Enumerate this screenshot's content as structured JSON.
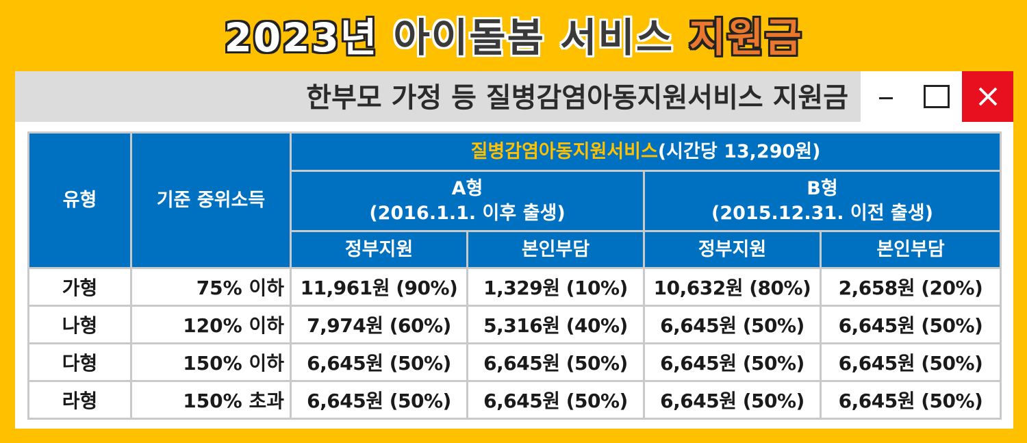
{
  "main_title": {
    "year": "2023년",
    "middle": "아이돌봄 서비스",
    "highlight": "지원금"
  },
  "window": {
    "title": "한부모 가정 등 질병감염아동지원서비스 지원금",
    "controls": {
      "minimize": "minimize-icon",
      "maximize": "maximize-icon",
      "close": "close-icon",
      "close_color": "#e8101e"
    }
  },
  "table": {
    "headers": {
      "type": "유형",
      "income": "기준 중위소득",
      "service_name": "질병감염아동지원서비스",
      "service_rate": "(시간당 13,290원)",
      "group_a_title": "A형",
      "group_a_sub": "(2016.1.1. 이후 출생)",
      "group_b_title": "B형",
      "group_b_sub": "(2015.12.31. 이전 출생)",
      "gov": "정부지원",
      "self": "본인부담"
    },
    "rows": [
      {
        "type": "가형",
        "income": "75% 이하",
        "a_gov": "11,961원 (90%)",
        "a_self": "1,329원 (10%)",
        "b_gov": "10,632원 (80%)",
        "b_self": "2,658원 (20%)"
      },
      {
        "type": "나형",
        "income": "120% 이하",
        "a_gov": "7,974원 (60%)",
        "a_self": "5,316원 (40%)",
        "b_gov": "6,645원 (50%)",
        "b_self": "6,645원 (50%)"
      },
      {
        "type": "다형",
        "income": "150% 이하",
        "a_gov": "6,645원 (50%)",
        "a_self": "6,645원 (50%)",
        "b_gov": "6,645원 (50%)",
        "b_self": "6,645원 (50%)"
      },
      {
        "type": "라형",
        "income": "150% 초과",
        "a_gov": "6,645원 (50%)",
        "a_self": "6,645원 (50%)",
        "b_gov": "6,645원 (50%)",
        "b_self": "6,645원 (50%)"
      }
    ]
  },
  "colors": {
    "background": "#ffc000",
    "header_blue": "#0070c0",
    "service_title": "#ffc000",
    "title_highlight": "#e9772e"
  }
}
